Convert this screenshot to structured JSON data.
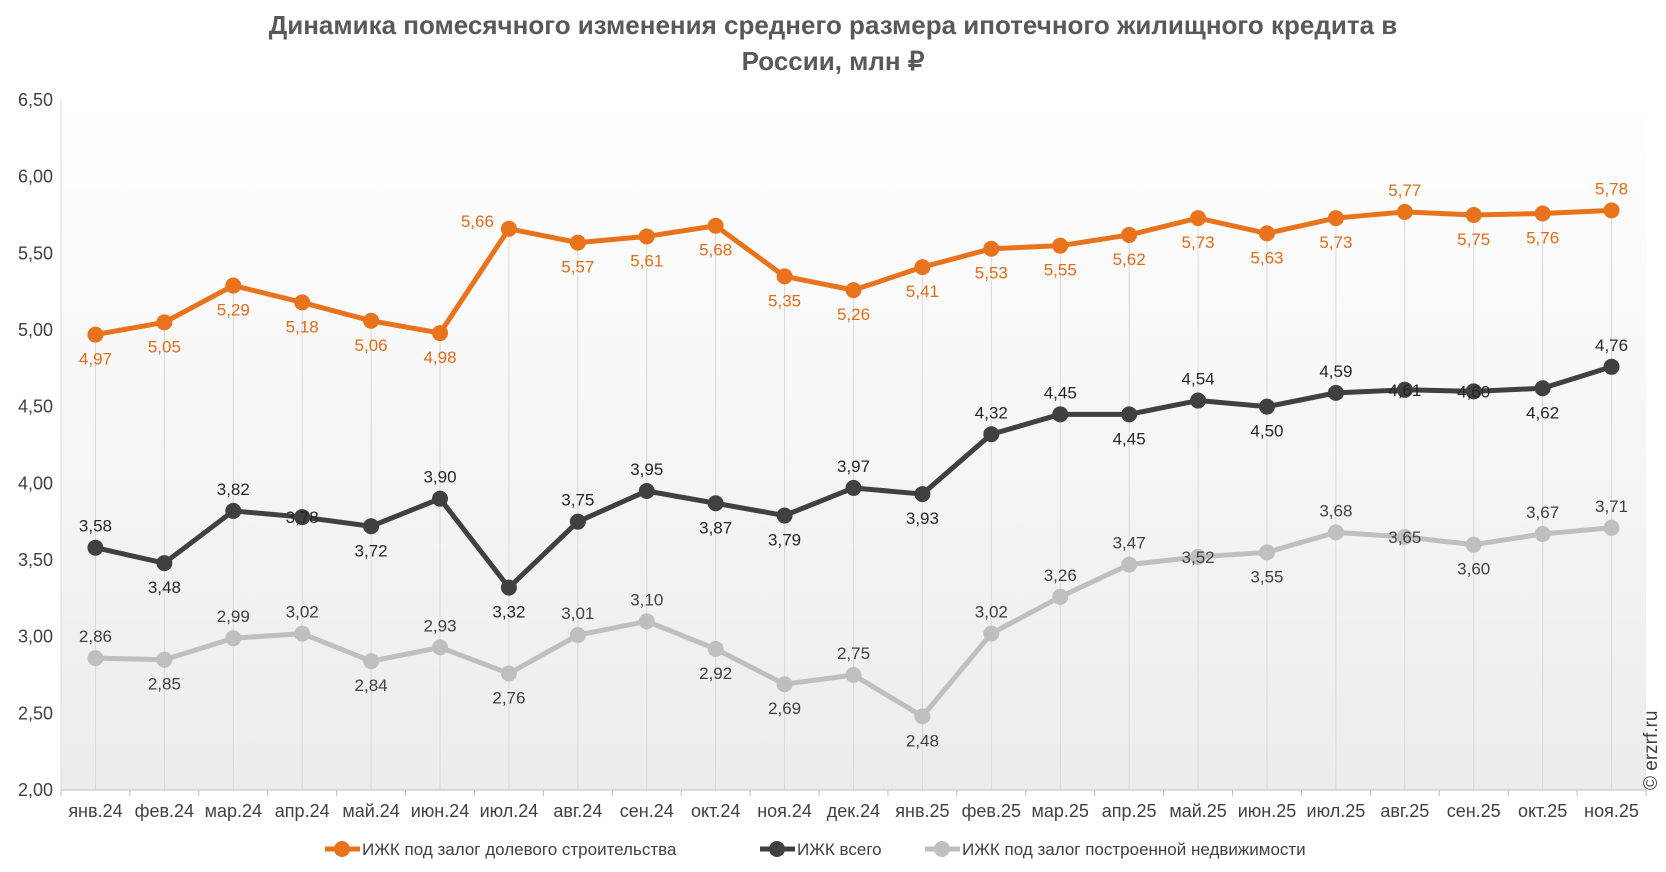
{
  "chart_data": {
    "type": "line",
    "title_lines": [
      "Динамика помесячного изменения среднего размера ипотечного жилищного кредита в",
      "России, млн ₽"
    ],
    "categories": [
      "янв.24",
      "фев.24",
      "мар.24",
      "апр.24",
      "май.24",
      "июн.24",
      "июл.24",
      "авг.24",
      "сен.24",
      "окт.24",
      "ноя.24",
      "дек.24",
      "янв.25",
      "фев.25",
      "мар.25",
      "апр.25",
      "май.25",
      "июн.25",
      "июл.25",
      "авг.25",
      "сен.25",
      "окт.25",
      "ноя.25"
    ],
    "ylim": [
      2.0,
      6.5
    ],
    "yticks": [
      2.0,
      2.5,
      3.0,
      3.5,
      4.0,
      4.5,
      5.0,
      5.5,
      6.0,
      6.5
    ],
    "ytick_labels": [
      "2,00",
      "2,50",
      "3,00",
      "3,50",
      "4,00",
      "4,50",
      "5,00",
      "5,50",
      "6,00",
      "6,50"
    ],
    "series": [
      {
        "name": "ИЖК под залог долевого строительства",
        "color": "#E8731C",
        "label_color": "#E06C1A",
        "values": [
          4.97,
          5.05,
          5.29,
          5.18,
          5.06,
          4.98,
          5.66,
          5.57,
          5.61,
          5.68,
          5.35,
          5.26,
          5.41,
          5.53,
          5.55,
          5.62,
          5.73,
          5.63,
          5.73,
          5.77,
          5.75,
          5.76,
          5.78
        ],
        "labels": [
          "4,97",
          "5,05",
          "5,29",
          "5,18",
          "5,06",
          "4,98",
          "5,66",
          "5,57",
          "5,61",
          "5,68",
          "5,35",
          "5,26",
          "5,41",
          "5,53",
          "5,55",
          "5,62",
          "5,73",
          "5,63",
          "5,73",
          "5,77",
          "5,75",
          "5,76",
          "5,78"
        ],
        "label_pos": [
          "below",
          "below",
          "below",
          "below",
          "below",
          "below",
          "left",
          "below",
          "below",
          "below",
          "below",
          "below",
          "below",
          "below",
          "below",
          "below",
          "below",
          "below",
          "below",
          "above",
          "below",
          "below",
          "above"
        ]
      },
      {
        "name": "ИЖК всего",
        "color": "#404040",
        "label_color": "#262626",
        "values": [
          3.58,
          3.48,
          3.82,
          3.78,
          3.72,
          3.9,
          3.32,
          3.75,
          3.95,
          3.87,
          3.79,
          3.97,
          3.93,
          4.32,
          4.45,
          4.45,
          4.54,
          4.5,
          4.59,
          4.61,
          4.6,
          4.62,
          4.76
        ],
        "labels": [
          "3,58",
          "3,48",
          "3,82",
          "3,78",
          "3,72",
          "3,90",
          "3,32",
          "3,75",
          "3,95",
          "3,87",
          "3,79",
          "3,97",
          "3,93",
          "4,32",
          "4,45",
          "4,45",
          "4,54",
          "4,50",
          "4,59",
          "4,61",
          "4,60",
          "4,62",
          "4,76"
        ],
        "label_pos": [
          "above",
          "below",
          "above",
          "center",
          "below",
          "above",
          "below",
          "above",
          "above",
          "below",
          "below",
          "above",
          "below",
          "above",
          "above",
          "below",
          "above",
          "below",
          "above",
          "center",
          "center",
          "below",
          "above"
        ]
      },
      {
        "name": "ИЖК под залог построенной недвижимости",
        "color": "#BFBFBF",
        "label_color": "#404040",
        "values": [
          2.86,
          2.85,
          2.99,
          3.02,
          2.84,
          2.93,
          2.76,
          3.01,
          3.1,
          2.92,
          2.69,
          2.75,
          2.48,
          3.02,
          3.26,
          3.47,
          3.52,
          3.55,
          3.68,
          3.65,
          3.6,
          3.67,
          3.71
        ],
        "labels": [
          "2,86",
          "2,85",
          "2,99",
          "3,02",
          "2,84",
          "2,93",
          "2,76",
          "3,01",
          "3,10",
          "2,92",
          "2,69",
          "2,75",
          "2,48",
          "3,02",
          "3,26",
          "3,47",
          "3,52",
          "3,55",
          "3,68",
          "3,65",
          "3,60",
          "3,67",
          "3,71"
        ],
        "label_pos": [
          "above",
          "below",
          "above",
          "above",
          "below",
          "above",
          "below",
          "above",
          "above",
          "below",
          "below",
          "above",
          "below",
          "above",
          "above",
          "above",
          "center",
          "below",
          "above",
          "center",
          "below",
          "above",
          "above"
        ]
      }
    ],
    "legend_position": "bottom",
    "grid": "vertical-drop-lines"
  },
  "watermark": "© erzrf.ru"
}
